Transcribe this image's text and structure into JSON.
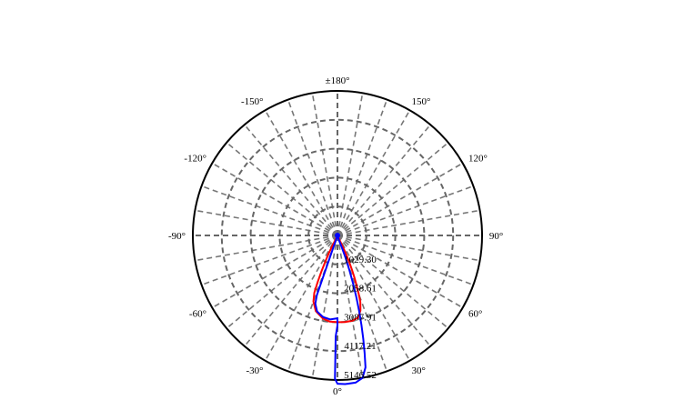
{
  "chart_data": {
    "type": "polar-line",
    "angle_ticks": [
      "0°",
      "30°",
      "60°",
      "90°",
      "120°",
      "150°",
      "±180°",
      "-150°",
      "-120°",
      "-90°",
      "-60°",
      "-30°"
    ],
    "radial_ticks": [
      "1029.30",
      "2058.61",
      "3087.91",
      "4117.21",
      "5146.52"
    ],
    "r_max": 5146.52,
    "grid": true,
    "series": [
      {
        "color": "#ff0000",
        "points": [
          [
            0,
            3087.91
          ],
          [
            5,
            3095
          ],
          [
            10,
            3080
          ],
          [
            14,
            3020
          ],
          [
            17,
            2800
          ],
          [
            19,
            2500
          ],
          [
            20,
            2200
          ],
          [
            21,
            1900
          ],
          [
            22,
            1600
          ],
          [
            23,
            1300
          ],
          [
            24,
            1000
          ],
          [
            25,
            700
          ],
          [
            25,
            400
          ],
          [
            25,
            150
          ],
          [
            0,
            0
          ],
          [
            -25,
            150
          ],
          [
            -26,
            400
          ],
          [
            -26,
            700
          ],
          [
            -25,
            1000
          ],
          [
            -24,
            1400
          ],
          [
            -23,
            1800
          ],
          [
            -22,
            2200
          ],
          [
            -20,
            2500
          ],
          [
            -16,
            2800
          ],
          [
            -10,
            3000
          ],
          [
            -5,
            3080
          ],
          [
            0,
            3087.91
          ]
        ]
      },
      {
        "color": "#0000ff",
        "points": [
          [
            0,
            2950
          ],
          [
            -5,
            3000
          ],
          [
            -10,
            2950
          ],
          [
            -15,
            2800
          ],
          [
            -18,
            2550
          ],
          [
            -19,
            2250
          ],
          [
            -19,
            1950
          ],
          [
            -19,
            1650
          ],
          [
            -19,
            1350
          ],
          [
            -19,
            1050
          ],
          [
            -19,
            750
          ],
          [
            -19,
            450
          ],
          [
            -18,
            200
          ],
          [
            0,
            0
          ],
          [
            18,
            200
          ],
          [
            20,
            500
          ],
          [
            20,
            800
          ],
          [
            19,
            1300
          ],
          [
            18,
            1800
          ],
          [
            17,
            2300
          ],
          [
            16,
            2800
          ],
          [
            15,
            3300
          ],
          [
            14,
            3800
          ],
          [
            13,
            4300
          ],
          [
            12,
            4800
          ],
          [
            10,
            5150
          ],
          [
            7,
            5280
          ],
          [
            3,
            5300
          ],
          [
            0,
            5280
          ],
          [
            -1,
            5100
          ],
          [
            -1,
            4800
          ],
          [
            -1,
            4400
          ],
          [
            -1,
            4000
          ],
          [
            -1,
            3600
          ],
          [
            0,
            3200
          ],
          [
            0,
            2950
          ]
        ]
      }
    ]
  }
}
